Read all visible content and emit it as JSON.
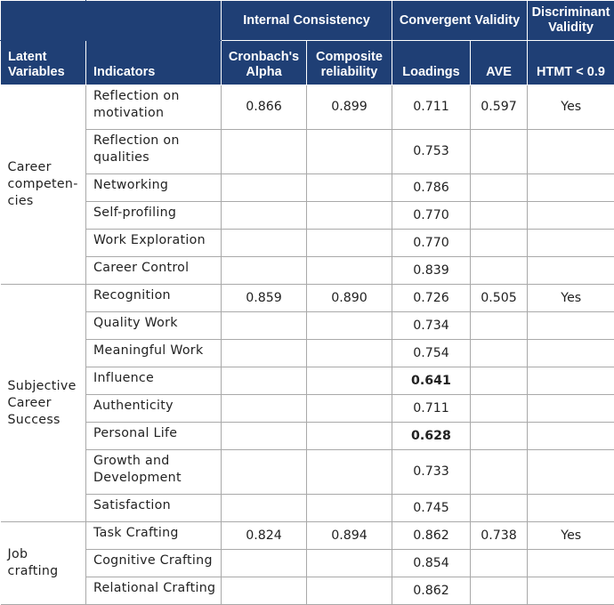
{
  "header": {
    "internal_consistency": "Internal Consistency",
    "convergent_validity": "Convergent Validity",
    "discriminant_validity": "Discriminant Validity",
    "latent_variables": "Latent Variables",
    "indicators": "Indicators",
    "cronbach": "Cronbach's Alpha",
    "composite": "Composite reliability",
    "loadings": "Loadings",
    "ave": "AVE",
    "htmt": "HTMT < 0.9"
  },
  "groups": [
    {
      "name": "Career competen-cies",
      "cronbach": "0.866",
      "composite": "0.899",
      "ave": "0.597",
      "htmt": "Yes",
      "rows": [
        {
          "indicator": "Reflection on motivation",
          "loading": "0.711"
        },
        {
          "indicator": "Reflection on qualities",
          "loading": "0.753"
        },
        {
          "indicator": "Networking",
          "loading": "0.786"
        },
        {
          "indicator": "Self-profiling",
          "loading": "0.770"
        },
        {
          "indicator": "Work Exploration",
          "loading": "0.770"
        },
        {
          "indicator": "Career Control",
          "loading": "0.839"
        }
      ]
    },
    {
      "name": "Subjective Career Success",
      "cronbach": "0.859",
      "composite": "0.890",
      "ave": "0.505",
      "htmt": "Yes",
      "rows": [
        {
          "indicator": "Recognition",
          "loading": "0.726"
        },
        {
          "indicator": "Quality Work",
          "loading": "0.734"
        },
        {
          "indicator": "Meaningful Work",
          "loading": "0.754"
        },
        {
          "indicator": "Influence",
          "loading": "0.641"
        },
        {
          "indicator": "Authenticity",
          "loading": "0.711"
        },
        {
          "indicator": "Personal Life",
          "loading": "0.628"
        },
        {
          "indicator": "Growth and Development",
          "loading": "0.733"
        },
        {
          "indicator": "Satisfaction",
          "loading": "0.745"
        }
      ]
    },
    {
      "name": "Job crafting",
      "cronbach": "0.824",
      "composite": "0.894",
      "ave": "0.738",
      "htmt": "Yes",
      "rows": [
        {
          "indicator": "Task Crafting",
          "loading": "0.862"
        },
        {
          "indicator": "Cognitive Crafting",
          "loading": "0.854"
        },
        {
          "indicator": "Relational Crafting",
          "loading": "0.862"
        }
      ]
    }
  ]
}
